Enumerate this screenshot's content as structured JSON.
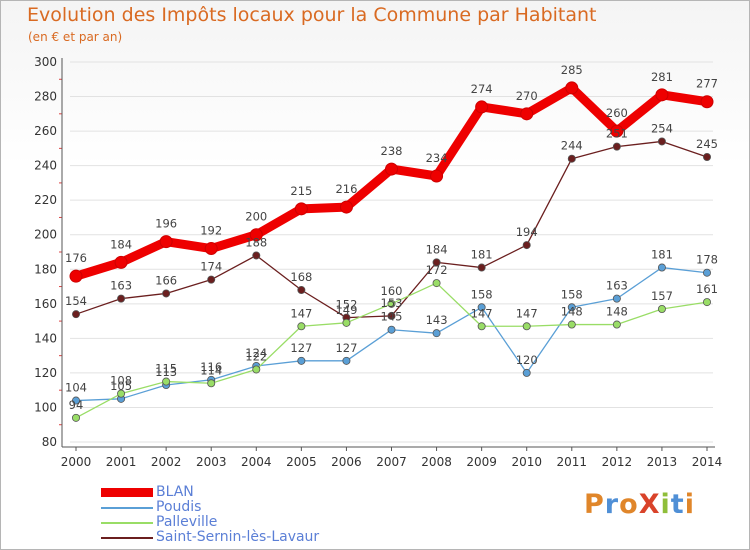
{
  "header": {
    "title": "Evolution des Impôts locaux pour la Commune par Habitant",
    "subtitle": "(en € et par an)"
  },
  "logo": {
    "text": "ProXiti",
    "letters": [
      "P",
      "r",
      "o",
      "X",
      "i",
      "t",
      "i"
    ],
    "colors": [
      "#e0862a",
      "#4f8fd6",
      "#e0862a",
      "#d9432a",
      "#8fbe3a",
      "#4f8fd6",
      "#e0862a"
    ]
  },
  "colors": {
    "BLAN": "#ee0000",
    "Poudis": "#5a9fd6",
    "Palleville": "#99dd66",
    "Saint-Sernin-lès-Lavaur": "#6b1f1f",
    "axis": "#333333",
    "grid": "#dddddd"
  },
  "chart_data": {
    "type": "line",
    "title": "Evolution des Impôts locaux pour la Commune par Habitant",
    "subtitle": "(en € et par an)",
    "xlabel": "",
    "ylabel": "",
    "x": [
      2000,
      2001,
      2002,
      2003,
      2004,
      2005,
      2006,
      2007,
      2008,
      2009,
      2010,
      2011,
      2012,
      2013,
      2014
    ],
    "x_tick_labels": [
      "2000",
      "2001",
      "2002",
      "2003",
      "2004",
      "2005",
      "2006",
      "2007",
      "2008",
      "2009",
      "2010",
      "2011",
      "2012",
      "2013",
      "2014"
    ],
    "ylim": [
      80,
      300
    ],
    "y_ticks": [
      80,
      100,
      120,
      140,
      160,
      180,
      200,
      220,
      240,
      260,
      280,
      300
    ],
    "grid": true,
    "legend_position": "bottom-left",
    "series": [
      {
        "name": "BLAN",
        "color": "#ee0000",
        "emphasis": "bold",
        "values": [
          176,
          184,
          196,
          192,
          200,
          215,
          216,
          238,
          234,
          274,
          270,
          285,
          260,
          281,
          277
        ]
      },
      {
        "name": "Poudis",
        "color": "#5a9fd6",
        "values": [
          104,
          105,
          113,
          116,
          124,
          127,
          127,
          145,
          143,
          158,
          120,
          158,
          163,
          181,
          178
        ]
      },
      {
        "name": "Palleville",
        "color": "#99dd66",
        "values": [
          94,
          108,
          115,
          114,
          122,
          147,
          149,
          160,
          172,
          147,
          147,
          148,
          148,
          157,
          161
        ]
      },
      {
        "name": "Saint-Sernin-lès-Lavaur",
        "color": "#6b1f1f",
        "values": [
          154,
          163,
          166,
          174,
          188,
          168,
          152,
          153,
          184,
          181,
          194,
          244,
          251,
          254,
          245
        ]
      }
    ]
  }
}
